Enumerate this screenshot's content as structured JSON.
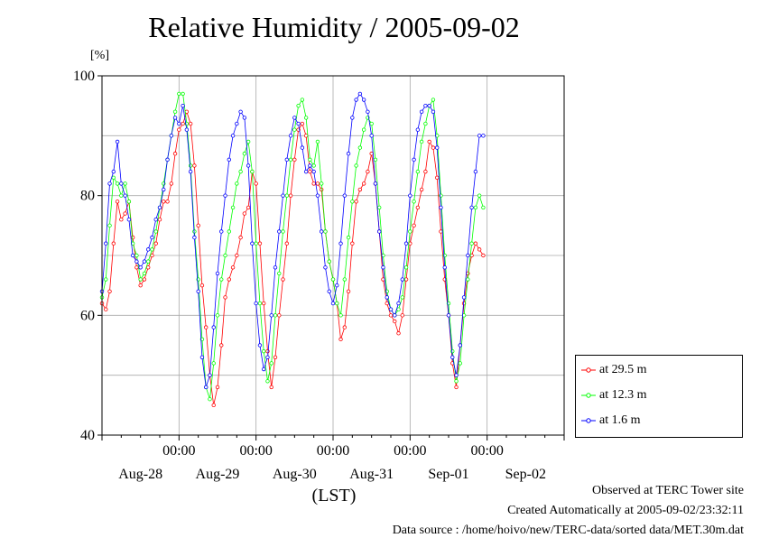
{
  "title": "Relative Humidity / 2005-09-02",
  "unit_label": "[%]",
  "x_axis_label": "(LST)",
  "footer": {
    "line1": "Observed at TERC Tower site",
    "line2": "Created Automatically at 2005-09-02/23:32:11",
    "line3": "Data source : /home/hoivo/new/TERC-data/sorted  data/MET.30m.dat"
  },
  "colors": {
    "at_29_5": "#ff0000",
    "at_12_3": "#00ff00",
    "at_1_6": "#0000ff"
  },
  "chart_data": {
    "type": "line",
    "x_unit": "days since 2005-08-27 00:00 LST",
    "xlim": [
      0,
      6.0
    ],
    "ylim": [
      40,
      100
    ],
    "yticks": [
      40,
      60,
      80,
      100
    ],
    "x_tick_labels": [
      {
        "x": 0.5,
        "label": "Aug-28"
      },
      {
        "x": 1.5,
        "label": "Aug-29"
      },
      {
        "x": 2.5,
        "label": "Aug-30"
      },
      {
        "x": 3.5,
        "label": "Aug-31"
      },
      {
        "x": 4.5,
        "label": "Sep-01"
      },
      {
        "x": 5.5,
        "label": "Sep-02"
      }
    ],
    "x_time_labels": [
      {
        "x": 1.0,
        "label": "00:00"
      },
      {
        "x": 2.0,
        "label": "00:00"
      },
      {
        "x": 3.0,
        "label": "00:00"
      },
      {
        "x": 4.0,
        "label": "00:00"
      },
      {
        "x": 5.0,
        "label": "00:00"
      }
    ],
    "grid": true,
    "legend_position": "bottom-right outside",
    "series": [
      {
        "name": "at 29.5 m",
        "color": "#ff0000",
        "points": [
          [
            0.0,
            62
          ],
          [
            0.05,
            61
          ],
          [
            0.1,
            64
          ],
          [
            0.15,
            72
          ],
          [
            0.2,
            79
          ],
          [
            0.25,
            76
          ],
          [
            0.3,
            77
          ],
          [
            0.35,
            79
          ],
          [
            0.4,
            73
          ],
          [
            0.45,
            68
          ],
          [
            0.5,
            65
          ],
          [
            0.55,
            66
          ],
          [
            0.6,
            68
          ],
          [
            0.65,
            70
          ],
          [
            0.7,
            72
          ],
          [
            0.75,
            76
          ],
          [
            0.8,
            79
          ],
          [
            0.85,
            79
          ],
          [
            0.9,
            82
          ],
          [
            0.95,
            87
          ],
          [
            1.0,
            91
          ],
          [
            1.05,
            92
          ],
          [
            1.1,
            94
          ],
          [
            1.15,
            92
          ],
          [
            1.2,
            85
          ],
          [
            1.25,
            75
          ],
          [
            1.3,
            65
          ],
          [
            1.35,
            58
          ],
          [
            1.4,
            50
          ],
          [
            1.45,
            45
          ],
          [
            1.5,
            48
          ],
          [
            1.55,
            55
          ],
          [
            1.6,
            63
          ],
          [
            1.65,
            66
          ],
          [
            1.7,
            68
          ],
          [
            1.75,
            70
          ],
          [
            1.8,
            73
          ],
          [
            1.85,
            77
          ],
          [
            1.9,
            78
          ],
          [
            1.95,
            84
          ],
          [
            2.0,
            82
          ],
          [
            2.05,
            72
          ],
          [
            2.1,
            62
          ],
          [
            2.15,
            54
          ],
          [
            2.2,
            48
          ],
          [
            2.25,
            53
          ],
          [
            2.3,
            60
          ],
          [
            2.35,
            66
          ],
          [
            2.4,
            72
          ],
          [
            2.45,
            80
          ],
          [
            2.5,
            86
          ],
          [
            2.55,
            91
          ],
          [
            2.6,
            92
          ],
          [
            2.65,
            90
          ],
          [
            2.7,
            84
          ],
          [
            2.75,
            82
          ],
          [
            2.8,
            82
          ],
          [
            2.85,
            81
          ],
          [
            2.9,
            74
          ],
          [
            2.95,
            69
          ],
          [
            3.0,
            66
          ],
          [
            3.05,
            62
          ],
          [
            3.1,
            56
          ],
          [
            3.15,
            58
          ],
          [
            3.2,
            64
          ],
          [
            3.25,
            72
          ],
          [
            3.3,
            79
          ],
          [
            3.35,
            81
          ],
          [
            3.4,
            82
          ],
          [
            3.45,
            84
          ],
          [
            3.5,
            87
          ],
          [
            3.55,
            82
          ],
          [
            3.6,
            74
          ],
          [
            3.65,
            66
          ],
          [
            3.7,
            62
          ],
          [
            3.75,
            60
          ],
          [
            3.8,
            59
          ],
          [
            3.85,
            57
          ],
          [
            3.9,
            60
          ],
          [
            3.95,
            66
          ],
          [
            4.0,
            72
          ],
          [
            4.05,
            75
          ],
          [
            4.1,
            78
          ],
          [
            4.15,
            81
          ],
          [
            4.2,
            84
          ],
          [
            4.25,
            89
          ],
          [
            4.3,
            88
          ],
          [
            4.35,
            83
          ],
          [
            4.4,
            74
          ],
          [
            4.45,
            66
          ],
          [
            4.5,
            60
          ],
          [
            4.55,
            52
          ],
          [
            4.6,
            48
          ],
          [
            4.65,
            55
          ],
          [
            4.7,
            62
          ],
          [
            4.75,
            67
          ],
          [
            4.8,
            70
          ],
          [
            4.85,
            72
          ],
          [
            4.9,
            71
          ],
          [
            4.95,
            70
          ]
        ]
      },
      {
        "name": "at 12.3 m",
        "color": "#00ff00",
        "points": [
          [
            0.0,
            63
          ],
          [
            0.05,
            66
          ],
          [
            0.1,
            75
          ],
          [
            0.15,
            83
          ],
          [
            0.2,
            82
          ],
          [
            0.25,
            80
          ],
          [
            0.3,
            82
          ],
          [
            0.35,
            79
          ],
          [
            0.4,
            72
          ],
          [
            0.45,
            70
          ],
          [
            0.5,
            66
          ],
          [
            0.55,
            67
          ],
          [
            0.6,
            69
          ],
          [
            0.65,
            71
          ],
          [
            0.7,
            74
          ],
          [
            0.75,
            78
          ],
          [
            0.8,
            82
          ],
          [
            0.85,
            86
          ],
          [
            0.9,
            90
          ],
          [
            0.95,
            94
          ],
          [
            1.0,
            97
          ],
          [
            1.05,
            97
          ],
          [
            1.1,
            92
          ],
          [
            1.15,
            85
          ],
          [
            1.2,
            74
          ],
          [
            1.25,
            66
          ],
          [
            1.3,
            56
          ],
          [
            1.35,
            48
          ],
          [
            1.4,
            46
          ],
          [
            1.45,
            52
          ],
          [
            1.5,
            60
          ],
          [
            1.55,
            66
          ],
          [
            1.6,
            70
          ],
          [
            1.65,
            74
          ],
          [
            1.7,
            78
          ],
          [
            1.75,
            82
          ],
          [
            1.8,
            84
          ],
          [
            1.85,
            87
          ],
          [
            1.9,
            89
          ],
          [
            1.95,
            84
          ],
          [
            2.0,
            72
          ],
          [
            2.05,
            62
          ],
          [
            2.1,
            54
          ],
          [
            2.15,
            49
          ],
          [
            2.2,
            52
          ],
          [
            2.25,
            60
          ],
          [
            2.3,
            67
          ],
          [
            2.35,
            74
          ],
          [
            2.4,
            80
          ],
          [
            2.45,
            86
          ],
          [
            2.5,
            91
          ],
          [
            2.55,
            95
          ],
          [
            2.6,
            96
          ],
          [
            2.65,
            93
          ],
          [
            2.7,
            86
          ],
          [
            2.75,
            85
          ],
          [
            2.8,
            89
          ],
          [
            2.85,
            82
          ],
          [
            2.9,
            74
          ],
          [
            2.95,
            69
          ],
          [
            3.0,
            66
          ],
          [
            3.05,
            62
          ],
          [
            3.1,
            60
          ],
          [
            3.15,
            66
          ],
          [
            3.2,
            73
          ],
          [
            3.25,
            79
          ],
          [
            3.3,
            85
          ],
          [
            3.35,
            88
          ],
          [
            3.4,
            91
          ],
          [
            3.45,
            93
          ],
          [
            3.5,
            92
          ],
          [
            3.55,
            86
          ],
          [
            3.6,
            78
          ],
          [
            3.65,
            70
          ],
          [
            3.7,
            64
          ],
          [
            3.75,
            61
          ],
          [
            3.8,
            60
          ],
          [
            3.85,
            61
          ],
          [
            3.9,
            63
          ],
          [
            3.95,
            68
          ],
          [
            4.0,
            74
          ],
          [
            4.05,
            79
          ],
          [
            4.1,
            84
          ],
          [
            4.15,
            89
          ],
          [
            4.2,
            92
          ],
          [
            4.25,
            95
          ],
          [
            4.3,
            96
          ],
          [
            4.35,
            90
          ],
          [
            4.4,
            80
          ],
          [
            4.45,
            70
          ],
          [
            4.5,
            62
          ],
          [
            4.55,
            54
          ],
          [
            4.6,
            49
          ],
          [
            4.65,
            52
          ],
          [
            4.7,
            60
          ],
          [
            4.75,
            66
          ],
          [
            4.8,
            72
          ],
          [
            4.85,
            78
          ],
          [
            4.9,
            80
          ],
          [
            4.95,
            78
          ]
        ]
      },
      {
        "name": "at 1.6 m",
        "color": "#0000ff",
        "points": [
          [
            0.0,
            64
          ],
          [
            0.05,
            72
          ],
          [
            0.1,
            82
          ],
          [
            0.15,
            84
          ],
          [
            0.2,
            89
          ],
          [
            0.25,
            82
          ],
          [
            0.3,
            80
          ],
          [
            0.35,
            76
          ],
          [
            0.4,
            70
          ],
          [
            0.45,
            69
          ],
          [
            0.5,
            68
          ],
          [
            0.55,
            69
          ],
          [
            0.6,
            71
          ],
          [
            0.65,
            73
          ],
          [
            0.7,
            76
          ],
          [
            0.75,
            78
          ],
          [
            0.8,
            81
          ],
          [
            0.85,
            86
          ],
          [
            0.9,
            90
          ],
          [
            0.95,
            93
          ],
          [
            1.0,
            92
          ],
          [
            1.05,
            95
          ],
          [
            1.1,
            91
          ],
          [
            1.15,
            84
          ],
          [
            1.2,
            73
          ],
          [
            1.25,
            64
          ],
          [
            1.3,
            53
          ],
          [
            1.35,
            48
          ],
          [
            1.4,
            50
          ],
          [
            1.45,
            58
          ],
          [
            1.5,
            67
          ],
          [
            1.55,
            74
          ],
          [
            1.6,
            80
          ],
          [
            1.65,
            86
          ],
          [
            1.7,
            90
          ],
          [
            1.75,
            92
          ],
          [
            1.8,
            94
          ],
          [
            1.85,
            93
          ],
          [
            1.9,
            85
          ],
          [
            1.95,
            72
          ],
          [
            2.0,
            62
          ],
          [
            2.05,
            55
          ],
          [
            2.1,
            51
          ],
          [
            2.15,
            53
          ],
          [
            2.2,
            60
          ],
          [
            2.25,
            68
          ],
          [
            2.3,
            74
          ],
          [
            2.35,
            80
          ],
          [
            2.4,
            86
          ],
          [
            2.45,
            90
          ],
          [
            2.5,
            93
          ],
          [
            2.55,
            92
          ],
          [
            2.6,
            88
          ],
          [
            2.65,
            84
          ],
          [
            2.7,
            85
          ],
          [
            2.75,
            84
          ],
          [
            2.8,
            80
          ],
          [
            2.85,
            74
          ],
          [
            2.9,
            68
          ],
          [
            2.95,
            64
          ],
          [
            3.0,
            62
          ],
          [
            3.05,
            65
          ],
          [
            3.1,
            72
          ],
          [
            3.15,
            80
          ],
          [
            3.2,
            87
          ],
          [
            3.25,
            93
          ],
          [
            3.3,
            96
          ],
          [
            3.35,
            97
          ],
          [
            3.4,
            96
          ],
          [
            3.45,
            94
          ],
          [
            3.5,
            90
          ],
          [
            3.55,
            82
          ],
          [
            3.6,
            74
          ],
          [
            3.65,
            68
          ],
          [
            3.7,
            63
          ],
          [
            3.75,
            61
          ],
          [
            3.8,
            60
          ],
          [
            3.85,
            62
          ],
          [
            3.9,
            66
          ],
          [
            3.95,
            72
          ],
          [
            4.0,
            80
          ],
          [
            4.05,
            86
          ],
          [
            4.1,
            91
          ],
          [
            4.15,
            94
          ],
          [
            4.2,
            95
          ],
          [
            4.25,
            95
          ],
          [
            4.3,
            94
          ],
          [
            4.35,
            88
          ],
          [
            4.4,
            78
          ],
          [
            4.45,
            68
          ],
          [
            4.5,
            60
          ],
          [
            4.55,
            53
          ],
          [
            4.6,
            50
          ],
          [
            4.65,
            55
          ],
          [
            4.7,
            63
          ],
          [
            4.75,
            70
          ],
          [
            4.8,
            78
          ],
          [
            4.85,
            84
          ],
          [
            4.9,
            90
          ],
          [
            4.95,
            90
          ]
        ]
      }
    ]
  }
}
